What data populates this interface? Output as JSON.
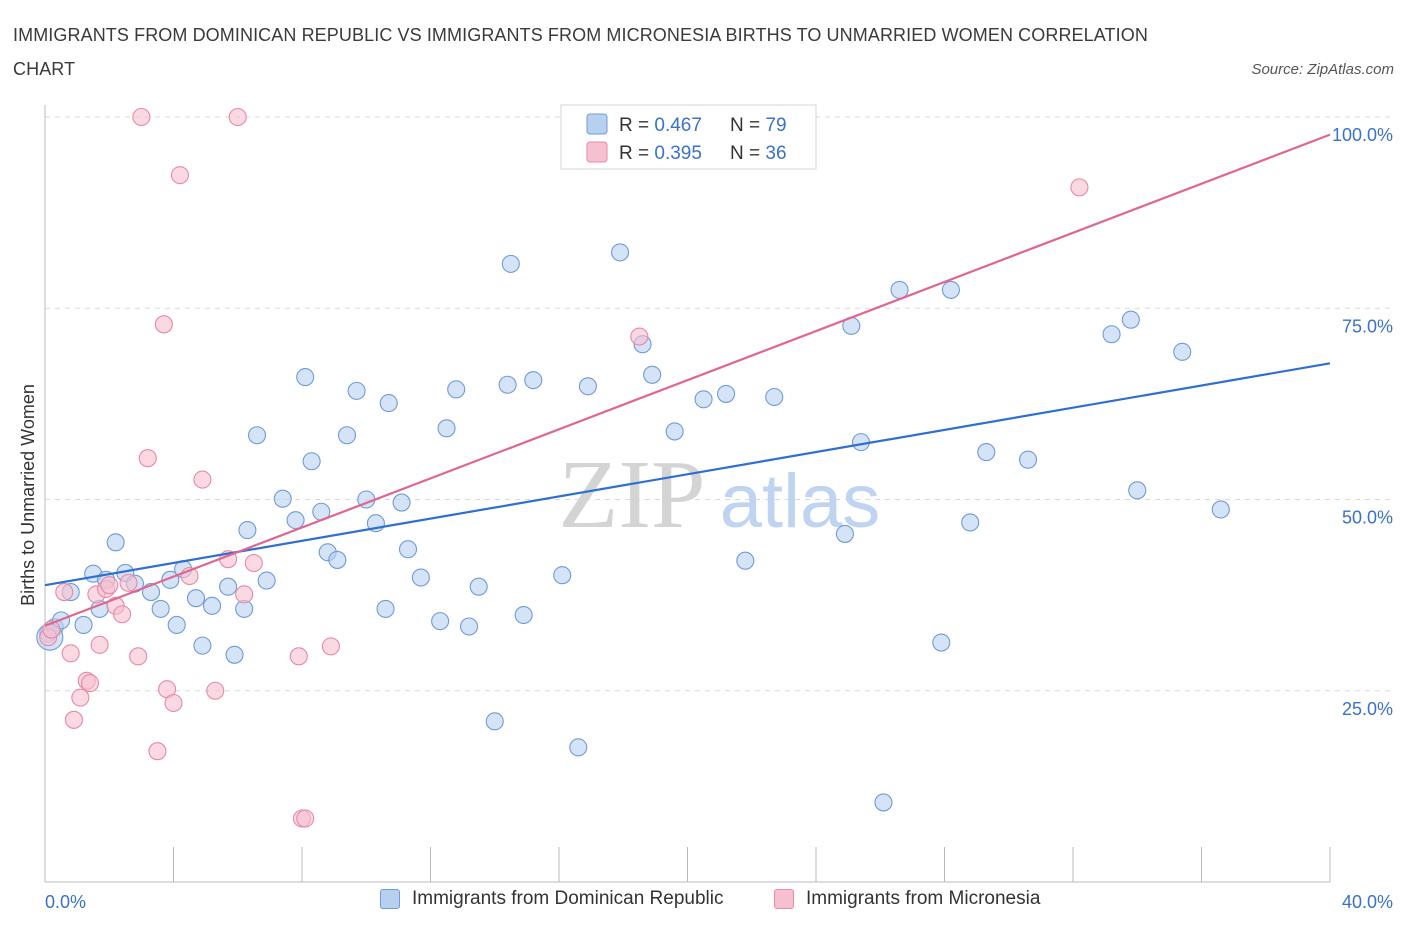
{
  "title": "IMMIGRANTS FROM DOMINICAN REPUBLIC VS IMMIGRANTS FROM MICRONESIA BIRTHS TO UNMARRIED WOMEN CORRELATION CHART",
  "source": "Source: ZipAtlas.com",
  "watermark": {
    "zip": "ZIP",
    "atlas": "atlas"
  },
  "colors": {
    "blue_fill": "#b8d0f0",
    "blue_stroke": "#6f9bd8",
    "blue_line": "#2f6fd0",
    "pink_fill": "#f7c0d0",
    "pink_stroke": "#e889a6",
    "pink_line": "#e0668f",
    "axis_text": "#3a72c8",
    "grid": "#d9d9d9"
  },
  "legend_top": [
    {
      "r_label": "R = ",
      "r_value": "0.467",
      "n_label": "N = ",
      "n_value": "79"
    },
    {
      "r_label": "R = ",
      "r_value": "0.395",
      "n_label": "N = ",
      "n_value": "36"
    }
  ],
  "legend_bottom": [
    {
      "label": "Immigrants from Dominican Republic"
    },
    {
      "label": "Immigrants from Micronesia"
    }
  ],
  "chart_data": {
    "type": "scatter",
    "title": "IMMIGRANTS FROM DOMINICAN REPUBLIC VS IMMIGRANTS FROM MICRONESIA BIRTHS TO UNMARRIED WOMEN CORRELATION CHART",
    "xlabel": "",
    "ylabel": "Births to Unmarried Women",
    "xlim": [
      0,
      40
    ],
    "ylim": [
      0,
      100
    ],
    "x_tick_labels": [
      "0.0%",
      "40.0%"
    ],
    "y_tick_values": [
      25,
      50,
      75,
      100
    ],
    "y_tick_labels": [
      "25.0%",
      "50.0%",
      "75.0%",
      "100.0%"
    ],
    "grid": true,
    "legend_position": "top-center",
    "series": [
      {
        "name": "Immigrants from Dominican Republic",
        "r": 0.467,
        "n": 79,
        "trend": {
          "x": [
            0,
            40
          ],
          "y": [
            38.8,
            67.8
          ]
        },
        "points": [
          [
            0.1,
            32.5
          ],
          [
            0.2,
            33
          ],
          [
            0.3,
            33.3
          ],
          [
            0.5,
            34.2
          ],
          [
            0.8,
            37.9
          ],
          [
            1.2,
            33.6
          ],
          [
            1.5,
            40.3
          ],
          [
            1.7,
            35.7
          ],
          [
            1.9,
            39.5
          ],
          [
            2.2,
            44.4
          ],
          [
            2.5,
            40.4
          ],
          [
            2.8,
            39
          ],
          [
            3.3,
            37.9
          ],
          [
            3.6,
            35.7
          ],
          [
            3.9,
            39.5
          ],
          [
            4.1,
            33.6
          ],
          [
            4.3,
            40.9
          ],
          [
            4.7,
            37.1
          ],
          [
            4.9,
            30.9
          ],
          [
            5.2,
            36.1
          ],
          [
            5.7,
            38.6
          ],
          [
            5.9,
            29.7
          ],
          [
            6.2,
            35.7
          ],
          [
            6.3,
            46
          ],
          [
            6.6,
            58.4
          ],
          [
            6.9,
            39.4
          ],
          [
            7.4,
            50.1
          ],
          [
            7.8,
            47.3
          ],
          [
            8.1,
            66
          ],
          [
            8.3,
            55
          ],
          [
            8.6,
            48.4
          ],
          [
            8.8,
            43.1
          ],
          [
            9.1,
            42.1
          ],
          [
            9.4,
            58.4
          ],
          [
            9.7,
            64.2
          ],
          [
            10,
            50
          ],
          [
            10.3,
            46.9
          ],
          [
            10.6,
            35.7
          ],
          [
            10.7,
            62.6
          ],
          [
            11.1,
            49.6
          ],
          [
            11.3,
            43.5
          ],
          [
            11.7,
            39.8
          ],
          [
            12.3,
            34.1
          ],
          [
            12.5,
            59.3
          ],
          [
            12.8,
            64.4
          ],
          [
            13.2,
            33.4
          ],
          [
            13.5,
            38.6
          ],
          [
            14,
            21
          ],
          [
            14.4,
            65
          ],
          [
            14.5,
            80.8
          ],
          [
            14.9,
            34.9
          ],
          [
            15.2,
            65.6
          ],
          [
            16.1,
            40.1
          ],
          [
            16.6,
            17.6
          ],
          [
            16.9,
            64.8
          ],
          [
            17.9,
            82.3
          ],
          [
            18.6,
            70.3
          ],
          [
            18.9,
            66.3
          ],
          [
            19.6,
            58.9
          ],
          [
            20.5,
            63.1
          ],
          [
            21.2,
            63.8
          ],
          [
            21.8,
            42
          ],
          [
            22.7,
            63.4
          ],
          [
            24.9,
            45.5
          ],
          [
            25.1,
            72.7
          ],
          [
            25.4,
            57.5
          ],
          [
            26.1,
            10.4
          ],
          [
            26.6,
            77.4
          ],
          [
            27.9,
            31.3
          ],
          [
            28.2,
            77.4
          ],
          [
            28.8,
            47
          ],
          [
            29.3,
            56.2
          ],
          [
            30.6,
            55.2
          ],
          [
            33.2,
            71.6
          ],
          [
            33.8,
            73.5
          ],
          [
            34,
            51.2
          ],
          [
            35.4,
            69.3
          ],
          [
            36.6,
            48.7
          ],
          [
            0.15,
            32
          ]
        ]
      },
      {
        "name": "Immigrants from Micronesia",
        "r": 0.395,
        "n": 36,
        "trend": {
          "x": [
            0,
            40
          ],
          "y": [
            33.5,
            97.7
          ]
        },
        "points": [
          [
            0.1,
            32
          ],
          [
            0.2,
            33
          ],
          [
            0.6,
            37.9
          ],
          [
            0.8,
            29.9
          ],
          [
            0.9,
            21.2
          ],
          [
            1.1,
            24.1
          ],
          [
            1.3,
            26.3
          ],
          [
            1.4,
            26
          ],
          [
            1.6,
            37.6
          ],
          [
            1.7,
            31
          ],
          [
            1.9,
            38.3
          ],
          [
            2,
            38.8
          ],
          [
            2.2,
            36.1
          ],
          [
            2.4,
            35
          ],
          [
            2.6,
            39.1
          ],
          [
            2.9,
            29.5
          ],
          [
            3,
            100
          ],
          [
            3.2,
            55.4
          ],
          [
            3.5,
            17.1
          ],
          [
            3.7,
            72.9
          ],
          [
            3.8,
            25.2
          ],
          [
            4,
            23.4
          ],
          [
            4.2,
            92.4
          ],
          [
            4.9,
            52.6
          ],
          [
            5.3,
            25
          ],
          [
            5.7,
            42.2
          ],
          [
            6,
            100
          ],
          [
            6.2,
            37.6
          ],
          [
            6.5,
            41.7
          ],
          [
            7.9,
            29.5
          ],
          [
            8,
            8.3
          ],
          [
            8.1,
            8.3
          ],
          [
            8.9,
            30.8
          ],
          [
            18.5,
            71.3
          ],
          [
            32.2,
            90.8
          ],
          [
            4.5,
            40
          ]
        ]
      }
    ]
  }
}
